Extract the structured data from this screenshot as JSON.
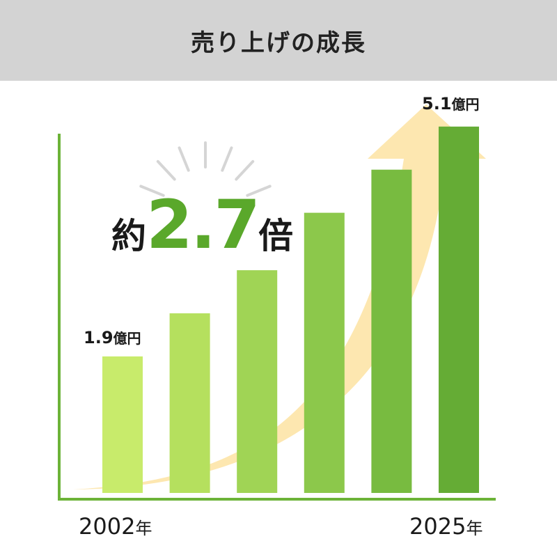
{
  "header": {
    "title": "売り上げの成長"
  },
  "multiplier": {
    "prefix": "約",
    "number": "2.7",
    "suffix": "倍"
  },
  "start_label": {
    "value": "1.9",
    "unit": "億円"
  },
  "end_label": {
    "value": "5.1",
    "unit": "億円"
  },
  "start_year": {
    "value": "2002",
    "unit": "年"
  },
  "end_year": {
    "value": "2025",
    "unit": "年"
  },
  "colors": {
    "axis": "#6cb338",
    "arrow": "#fde7b0",
    "accent": "#5aa82b",
    "bars": [
      "#c8eb6b",
      "#b5e05e",
      "#a0d455",
      "#8cc84b",
      "#78bb40",
      "#65ac35"
    ]
  },
  "chart_data": {
    "type": "bar",
    "categories": [
      "2002",
      "",
      "",
      "",
      "",
      "2025"
    ],
    "values": [
      1.9,
      2.5,
      3.1,
      3.9,
      4.5,
      5.1
    ],
    "ylim": [
      0,
      5.65
    ],
    "annotations": [
      "1.9億円",
      "5.1億円",
      "約2.7倍"
    ],
    "grid": false,
    "legend": "none"
  }
}
